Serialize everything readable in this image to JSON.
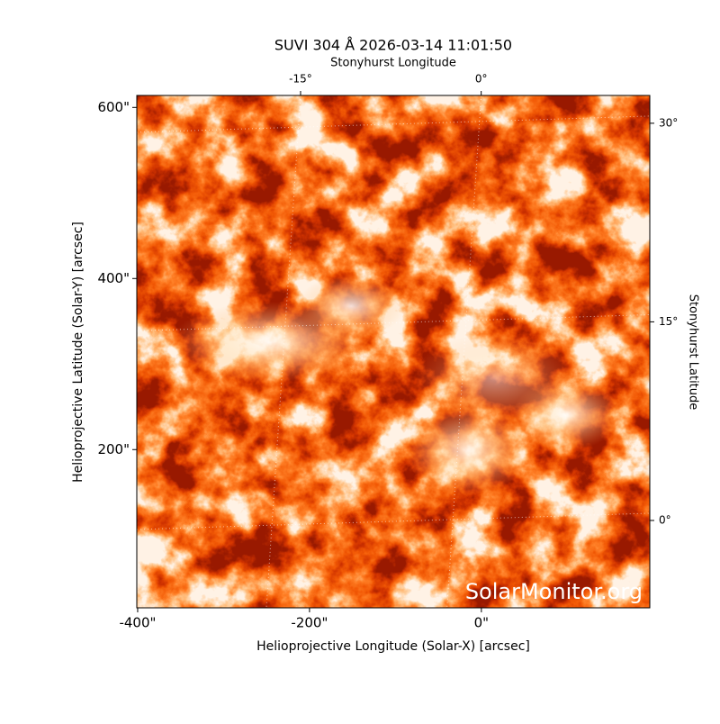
{
  "chart_data": {
    "type": "image",
    "title": "SUVI 304 Å 2026-03-14 11:01:50",
    "x_label": "Helioprojective Longitude (Solar-X) [arcsec]",
    "y_label": "Helioprojective Latitude (Solar-Y) [arcsec]",
    "x2_label": "Stonyhurst Longitude",
    "y2_label": "Stonyhurst Latitude",
    "watermark": "SolarMonitor.org",
    "xlim": [
      -401,
      196
    ],
    "xticks": [
      {
        "value": -400,
        "label": "-400\""
      },
      {
        "value": -200,
        "label": "-200\""
      },
      {
        "value": 0,
        "label": "0\""
      }
    ],
    "ylim": [
      15,
      614
    ],
    "yticks": [
      {
        "value": 200,
        "label": "200\""
      },
      {
        "value": 400,
        "label": "400\""
      },
      {
        "value": 600,
        "label": "600\""
      }
    ],
    "x2lim": [
      -28.6,
      14.0
    ],
    "x2ticks": [
      {
        "value": -15,
        "label": "-15°"
      },
      {
        "value": 0,
        "label": "0°"
      }
    ],
    "y2lim": [
      -6.6,
      32.1
    ],
    "y2ticks": [
      {
        "value": 0,
        "label": "0°"
      },
      {
        "value": 15,
        "label": "15°"
      },
      {
        "value": 30,
        "label": "30°"
      }
    ],
    "grid": true
  }
}
